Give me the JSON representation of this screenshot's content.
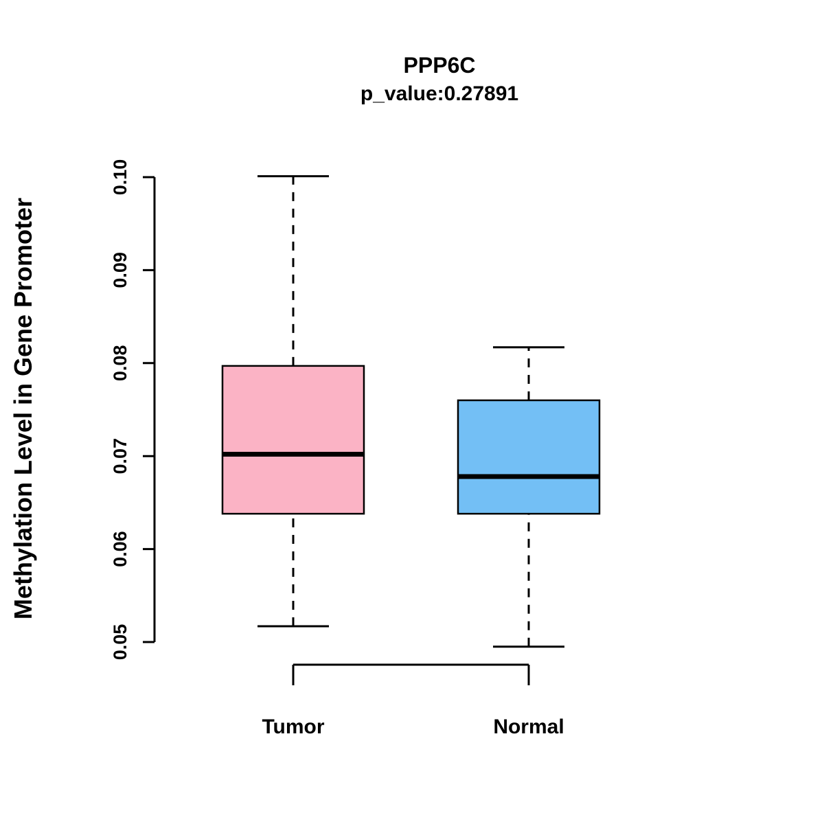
{
  "title": "PPP6C",
  "subtitle": "p_value:0.27891",
  "ylabel": "Methylation Level in Gene Promoter",
  "chart_data": {
    "type": "boxplot",
    "title": "PPP6C",
    "subtitle": "p_value:0.27891",
    "ylabel": "Methylation Level in Gene Promoter",
    "categories": [
      "Tumor",
      "Normal"
    ],
    "series": [
      {
        "name": "Tumor",
        "whisker_low": 0.0517,
        "q1": 0.0638,
        "median": 0.0702,
        "q3": 0.0797,
        "whisker_high": 0.1001,
        "color": "#FBB3C5"
      },
      {
        "name": "Normal",
        "whisker_low": 0.0495,
        "q1": 0.0638,
        "median": 0.0678,
        "q3": 0.076,
        "whisker_high": 0.0817,
        "color": "#73BFF5"
      }
    ],
    "ylim": [
      0.05,
      0.1
    ],
    "yticks": [
      0.05,
      0.06,
      0.07,
      0.08,
      0.09,
      0.1
    ],
    "ytick_labels": [
      "0.05",
      "0.06",
      "0.07",
      "0.08",
      "0.09",
      "0.10"
    ],
    "grid": "off",
    "legend": "none",
    "axis_color": "#000000",
    "median_color": "#000000"
  }
}
